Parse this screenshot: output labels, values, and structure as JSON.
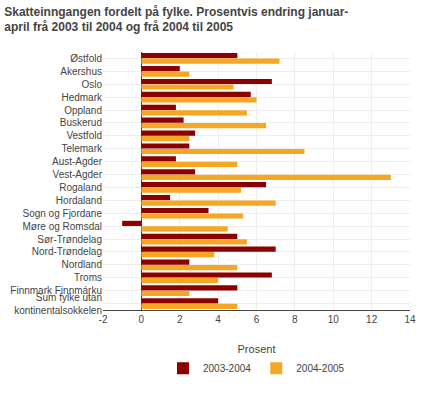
{
  "chart_data": {
    "type": "bar",
    "orientation": "horizontal",
    "title": "Skatteinngangen fordelt på fylke. Prosentvis endring januar-\napril frå 2003 til 2004 og frå 2004 til 2005",
    "xlabel": "Prosent",
    "categories": [
      "Østfold",
      "Akershus",
      "Oslo",
      "Hedmark",
      "Oppland",
      "Buskerud",
      "Vestfold",
      "Telemark",
      "Aust-Agder",
      "Vest-Agder",
      "Rogaland",
      "Hordaland",
      "Sogn og Fjordane",
      "Møre og Romsdal",
      "Sør-Trøndelag",
      "Nord-Trøndelag",
      "Nordland",
      "Troms",
      "Finnmark Finnmárku",
      "Sum fylke utan\nkontinentalsokkelen"
    ],
    "series": [
      {
        "name": "2003-2004",
        "color": "#8B0000",
        "values": [
          5.0,
          2.0,
          6.8,
          5.7,
          1.8,
          2.2,
          2.8,
          2.5,
          1.8,
          2.8,
          6.5,
          1.5,
          3.5,
          -1.0,
          5.0,
          7.0,
          2.5,
          6.8,
          5.0,
          4.0
        ]
      },
      {
        "name": "2004-2005",
        "color": "#F5A623",
        "values": [
          7.2,
          2.5,
          4.8,
          6.0,
          5.5,
          6.5,
          2.5,
          8.5,
          5.0,
          13.0,
          5.2,
          7.0,
          5.3,
          4.5,
          5.5,
          3.8,
          5.0,
          4.0,
          2.5,
          5.0
        ]
      }
    ],
    "xlim": [
      -2,
      14
    ],
    "xticks": [
      -2,
      0,
      2,
      4,
      6,
      8,
      10,
      12,
      14
    ],
    "grid": true,
    "legend": "bottom"
  }
}
